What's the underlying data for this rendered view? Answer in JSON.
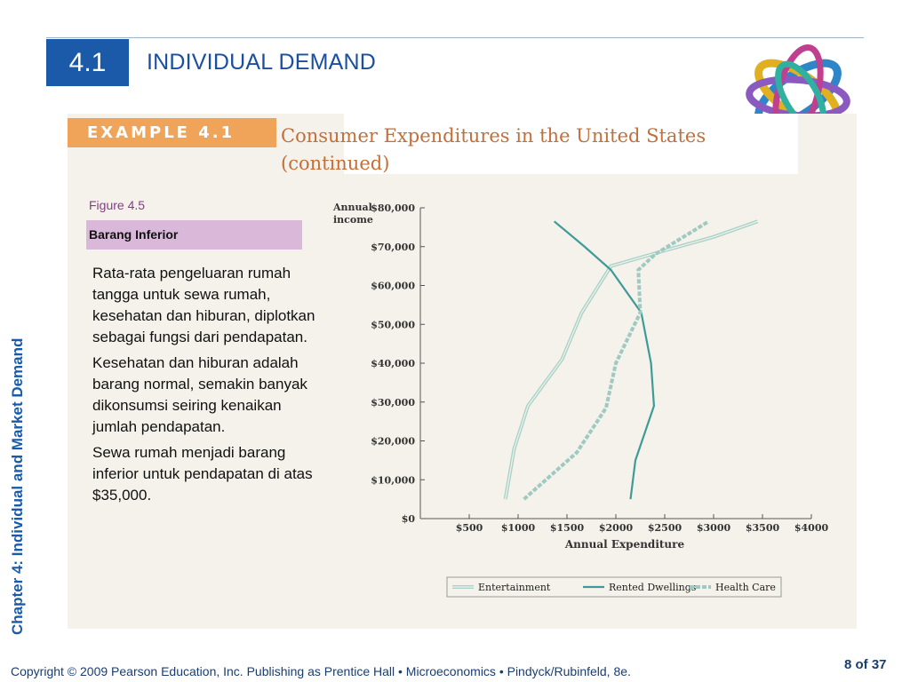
{
  "header": {
    "section_number": "4.1",
    "title": "INDIVIDUAL DEMAND"
  },
  "sidebar": {
    "chapter_label": "Chapter 4:  Individual and Market Demand"
  },
  "example": {
    "tag": "EXAMPLE 4.1",
    "title_line1": "Consumer Expenditures in the United States",
    "title_line2": "(continued)"
  },
  "figure": {
    "label": "Figure 4.5",
    "caption": "Barang Inferior",
    "paragraphs": [
      "Rata-rata pengeluaran rumah tangga untuk sewa rumah, kesehatan dan hiburan, diplotkan sebagai fungsi dari pendapatan.",
      "Kesehatan dan hiburan adalah barang normal, semakin banyak dikonsumsi seiring kenaikan jumlah pendapatan.",
      "Sewa rumah menjadi barang inferior untuk pendapatan di atas $35,000."
    ]
  },
  "chart_data": {
    "type": "line",
    "title": "",
    "ylabel_line1": "Annual",
    "ylabel_line2": "income",
    "xlabel": "Annual Expenditure",
    "xlim": [
      0,
      4000
    ],
    "ylim": [
      0,
      80000
    ],
    "xticks": [
      "$500",
      "$1000",
      "$1500",
      "$2000",
      "$2500",
      "$3000",
      "$3500",
      "$4000"
    ],
    "yticks": [
      "$0",
      "$10,000",
      "$20,000",
      "$30,000",
      "$40,000",
      "$50,000",
      "$60,000",
      "$70,000",
      "$80,000"
    ],
    "legend_position": "bottom",
    "series": [
      {
        "name": "Entertainment",
        "color": "#a9d3ca",
        "style": "double",
        "points": [
          [
            870,
            5000
          ],
          [
            960,
            18000
          ],
          [
            1100,
            29000
          ],
          [
            1450,
            41000
          ],
          [
            1650,
            53000
          ],
          [
            1950,
            65000
          ],
          [
            2500,
            69000
          ],
          [
            3000,
            72500
          ],
          [
            3450,
            76500
          ]
        ]
      },
      {
        "name": "Rented Dwellings",
        "color": "#3f9b98",
        "style": "solid",
        "points": [
          [
            2150,
            5000
          ],
          [
            2200,
            15000
          ],
          [
            2390,
            29000
          ],
          [
            2360,
            40000
          ],
          [
            2260,
            53000
          ],
          [
            1950,
            64000
          ],
          [
            1680,
            70000
          ],
          [
            1370,
            76500
          ]
        ]
      },
      {
        "name": "Health Care",
        "color": "#9fc9c3",
        "style": "dashed",
        "points": [
          [
            1060,
            5000
          ],
          [
            1600,
            17000
          ],
          [
            1900,
            28500
          ],
          [
            2000,
            40000
          ],
          [
            2250,
            53000
          ],
          [
            2230,
            64000
          ],
          [
            2400,
            68000
          ],
          [
            2950,
            76500
          ]
        ]
      }
    ]
  },
  "footer": {
    "copyright": "Copyright © 2009 Pearson Education, Inc. Publishing as Prentice Hall  •  Microeconomics  •  Pindyck/Rubinfeld, 8e.",
    "page": "8 of 37"
  }
}
